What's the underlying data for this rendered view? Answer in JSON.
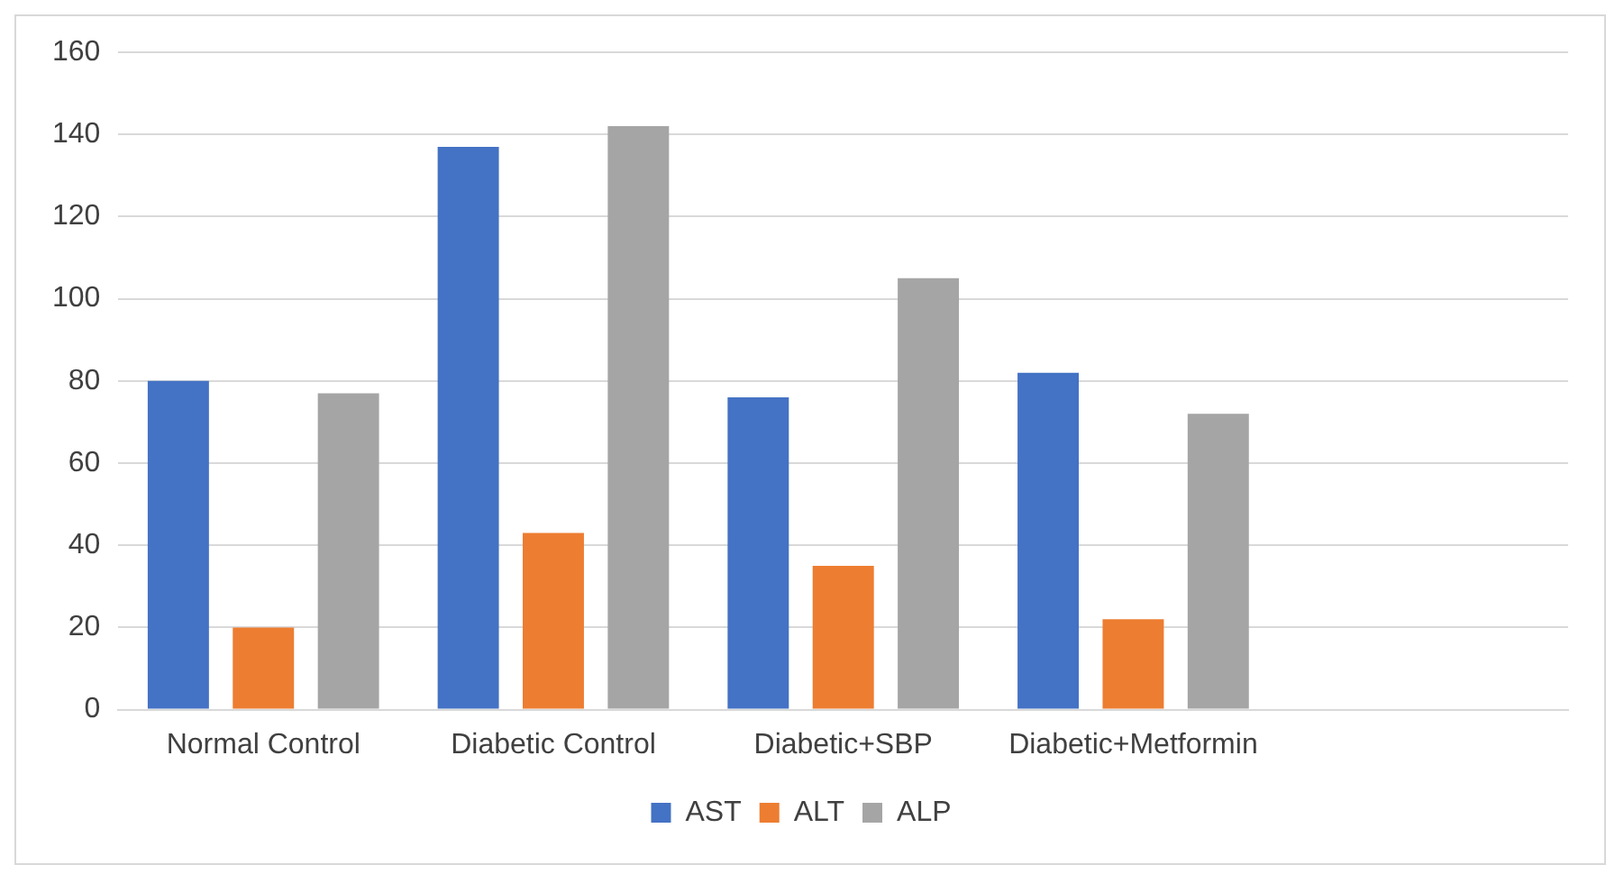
{
  "chart_data": {
    "type": "bar",
    "categories": [
      "Normal Control",
      "Diabetic Control",
      "Diabetic+SBP",
      "Diabetic+Metformin",
      null
    ],
    "series": [
      {
        "name": "AST",
        "color": "#4472c4",
        "values": [
          80,
          137,
          76,
          82,
          null
        ]
      },
      {
        "name": "ALT",
        "color": "#ed7d31",
        "values": [
          20,
          43,
          35,
          22,
          null
        ]
      },
      {
        "name": "ALP",
        "color": "#a5a5a5",
        "values": [
          77,
          142,
          105,
          72,
          null
        ]
      }
    ],
    "ylim": [
      0,
      160
    ],
    "yticks": [
      0,
      20,
      40,
      60,
      80,
      100,
      120,
      140,
      160
    ],
    "grid": "y",
    "legend": "bottom"
  }
}
